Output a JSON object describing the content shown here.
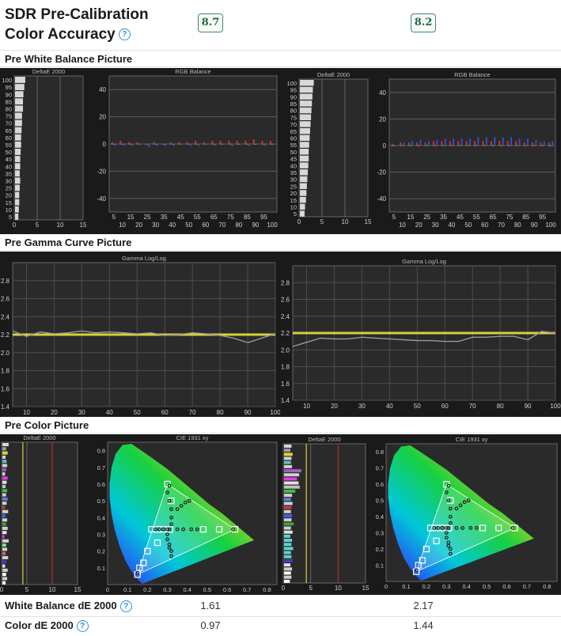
{
  "header": {
    "title_line1": "SDR Pre-Calibration",
    "title_line2": "Color Accuracy",
    "help_icon": "question-circle-icon",
    "score_left": "8.7",
    "score_right": "8.2"
  },
  "sections": {
    "white_balance": "Pre White Balance Picture",
    "gamma": "Pre Gamma Curve Picture",
    "color": "Pre Color Picture"
  },
  "colors": {
    "panel_bg": "#1a1a1a",
    "plot_bg": "#2a2a2a",
    "grid": "#555555",
    "gamma_target": "#d8d03a",
    "gamma_measured": "#9a9a9a",
    "red_line": "#c03030",
    "score_border": "#3a8f5c"
  },
  "metrics": [
    {
      "label": "White Balance dE 2000",
      "left": "1.61",
      "right": "2.17"
    },
    {
      "label": "Color dE 2000",
      "left": "0.97",
      "right": "1.44"
    }
  ],
  "chart_data": [
    {
      "id": "wb-deltae-left",
      "type": "bar",
      "title": "DeltaE 2000",
      "orientation": "horizontal",
      "categories": [
        5,
        10,
        15,
        20,
        25,
        30,
        35,
        40,
        45,
        50,
        55,
        60,
        65,
        70,
        75,
        80,
        85,
        90,
        95,
        100
      ],
      "values": [
        0.9,
        1.0,
        1.1,
        1.1,
        1.2,
        1.3,
        1.2,
        1.3,
        1.3,
        1.4,
        1.5,
        1.5,
        1.6,
        1.7,
        1.7,
        1.9,
        1.9,
        2.0,
        2.2,
        2.4
      ],
      "xlim": [
        0,
        15
      ],
      "xticks": [
        0,
        5,
        10,
        15
      ],
      "yticks": [
        5,
        10,
        15,
        20,
        25,
        30,
        35,
        40,
        45,
        50,
        55,
        60,
        65,
        70,
        75,
        80,
        85,
        90,
        95,
        100
      ]
    },
    {
      "id": "wb-rgb-left",
      "type": "scatter",
      "title": "RGB Balance",
      "x": [
        5,
        10,
        15,
        20,
        25,
        30,
        35,
        40,
        45,
        50,
        55,
        60,
        65,
        70,
        75,
        80,
        85,
        90,
        95,
        100
      ],
      "series": [
        {
          "color": "#e03030",
          "values": [
            1,
            2,
            1,
            1,
            0,
            1,
            0,
            1,
            1,
            1,
            2,
            1,
            2,
            2,
            2,
            2,
            2,
            3,
            2,
            2
          ]
        },
        {
          "color": "#30b030",
          "values": [
            0,
            0,
            0,
            0,
            0,
            0,
            0,
            0,
            0,
            0,
            0,
            0,
            0,
            0,
            0,
            0,
            0,
            0,
            0,
            0
          ]
        },
        {
          "color": "#3050e0",
          "values": [
            -1,
            -1,
            -1,
            0,
            -2,
            -1,
            -1,
            -1,
            0,
            -1,
            -1,
            0,
            -1,
            0,
            -1,
            0,
            -1,
            0,
            -1,
            0
          ]
        }
      ],
      "ylim": [
        -50,
        50
      ],
      "yticks": [
        -40,
        -20,
        0,
        20,
        40
      ],
      "xticks_top": [
        5,
        15,
        25,
        35,
        45,
        55,
        65,
        75,
        85,
        95
      ],
      "xticks_bottom": [
        10,
        20,
        30,
        40,
        50,
        60,
        70,
        80,
        90,
        100
      ]
    },
    {
      "id": "wb-deltae-right",
      "type": "bar",
      "title": "DeltaE 2000",
      "orientation": "horizontal",
      "categories": [
        5,
        10,
        15,
        20,
        25,
        30,
        35,
        40,
        45,
        50,
        55,
        60,
        65,
        70,
        75,
        80,
        85,
        90,
        95,
        100
      ],
      "values": [
        1.2,
        1.3,
        1.5,
        1.6,
        1.7,
        1.8,
        1.9,
        2.0,
        2.1,
        2.1,
        2.2,
        2.3,
        2.4,
        2.5,
        2.6,
        2.7,
        2.8,
        2.9,
        3.0,
        3.2
      ],
      "xlim": [
        0,
        15
      ],
      "xticks": [
        0,
        5,
        10,
        15
      ],
      "yticks": [
        5,
        10,
        15,
        20,
        25,
        30,
        35,
        40,
        45,
        50,
        55,
        60,
        65,
        70,
        75,
        80,
        85,
        90,
        95,
        100
      ]
    },
    {
      "id": "wb-rgb-right",
      "type": "scatter",
      "title": "RGB Balance",
      "x": [
        5,
        10,
        15,
        20,
        25,
        30,
        35,
        40,
        45,
        50,
        55,
        60,
        65,
        70,
        75,
        80,
        85,
        90,
        95,
        100
      ],
      "series": [
        {
          "color": "#e03030",
          "values": [
            1,
            2,
            2,
            2,
            2,
            3,
            3,
            3,
            3,
            3,
            3,
            3,
            3,
            3,
            3,
            3,
            2,
            2,
            2,
            2
          ]
        },
        {
          "color": "#30b030",
          "values": [
            0,
            0,
            0,
            0,
            0,
            0,
            0,
            0,
            0,
            0,
            0,
            0,
            0,
            0,
            0,
            0,
            0,
            0,
            0,
            0
          ]
        },
        {
          "color": "#3050e0",
          "values": [
            0,
            2,
            3,
            4,
            3,
            4,
            5,
            5,
            5,
            5,
            6,
            6,
            6,
            6,
            6,
            5,
            5,
            4,
            3,
            3
          ]
        }
      ],
      "ylim": [
        -50,
        50
      ],
      "yticks": [
        -40,
        -20,
        0,
        20,
        40
      ],
      "xticks_top": [
        5,
        15,
        25,
        35,
        45,
        55,
        65,
        75,
        85,
        95
      ],
      "xticks_bottom": [
        10,
        20,
        30,
        40,
        50,
        60,
        70,
        80,
        90,
        100
      ]
    },
    {
      "id": "gamma-left",
      "type": "line",
      "title": "Gamma Log/Log",
      "x": [
        5,
        10,
        15,
        20,
        25,
        30,
        35,
        40,
        45,
        50,
        55,
        60,
        65,
        70,
        75,
        80,
        85,
        90,
        95,
        100
      ],
      "series": [
        {
          "color": "#d8d03a",
          "values": [
            2.2,
            2.2,
            2.2,
            2.2,
            2.2,
            2.2,
            2.2,
            2.2,
            2.2,
            2.2,
            2.2,
            2.2,
            2.2,
            2.2,
            2.2,
            2.2,
            2.2,
            2.2,
            2.2,
            2.2
          ]
        },
        {
          "color": "#9a9a9a",
          "values": [
            2.24,
            2.18,
            2.23,
            2.21,
            2.22,
            2.24,
            2.22,
            2.23,
            2.22,
            2.21,
            2.22,
            2.19,
            2.2,
            2.22,
            2.21,
            2.19,
            2.16,
            2.11,
            2.16,
            2.21
          ]
        }
      ],
      "ylim": [
        1.4,
        3.0
      ],
      "yticks": [
        1.4,
        1.6,
        1.8,
        2.0,
        2.2,
        2.4,
        2.6,
        2.8
      ],
      "xticks": [
        10,
        20,
        30,
        40,
        50,
        60,
        70,
        80,
        90,
        100
      ]
    },
    {
      "id": "gamma-right",
      "type": "line",
      "title": "Gamma Log/Log",
      "x": [
        5,
        10,
        15,
        20,
        25,
        30,
        35,
        40,
        45,
        50,
        55,
        60,
        65,
        70,
        75,
        80,
        85,
        90,
        95,
        100
      ],
      "series": [
        {
          "color": "#d8d03a",
          "values": [
            2.2,
            2.2,
            2.2,
            2.2,
            2.2,
            2.2,
            2.2,
            2.2,
            2.2,
            2.2,
            2.2,
            2.2,
            2.2,
            2.2,
            2.2,
            2.2,
            2.2,
            2.2,
            2.2,
            2.2
          ]
        },
        {
          "color": "#9a9a9a",
          "values": [
            2.04,
            2.09,
            2.14,
            2.13,
            2.13,
            2.15,
            2.14,
            2.13,
            2.12,
            2.11,
            2.11,
            2.1,
            2.1,
            2.15,
            2.15,
            2.16,
            2.16,
            2.12,
            2.22,
            2.2
          ]
        }
      ],
      "ylim": [
        1.4,
        3.0
      ],
      "yticks": [
        1.4,
        1.6,
        1.8,
        2.0,
        2.2,
        2.4,
        2.6,
        2.8
      ],
      "xticks": [
        10,
        20,
        30,
        40,
        50,
        60,
        70,
        80,
        90,
        100
      ]
    },
    {
      "id": "color-deltae-left",
      "type": "bar",
      "title": "DeltaE 2000",
      "orientation": "horizontal",
      "values": [
        0.8,
        1.1,
        0.9,
        1.2,
        0.7,
        1.0,
        1.3,
        0.8,
        1.1,
        0.9,
        1.4,
        0.6,
        1.0,
        1.2,
        0.9,
        1.1,
        0.8,
        1.3,
        0.7,
        1.0,
        1.2,
        0.9,
        1.1,
        0.8,
        1.0,
        1.2,
        0.7,
        0.9,
        1.1,
        1.0,
        0.8,
        1.2,
        0.9,
        1.4
      ],
      "colors": [
        "#d8d8d8",
        "#a0a0a0",
        "#e0d040",
        "#d0d0d0",
        "#60c0c0",
        "#d0d0d0",
        "#a060c0",
        "#d0d0d0",
        "#e040e0",
        "#e0e0e0",
        "#c0c0c0",
        "#40c040",
        "#d0d0d0",
        "#6080e0",
        "#d0d0d0",
        "#c04040",
        "#d0d0d0",
        "#4060e0",
        "#d0d0d0",
        "#40a040",
        "#d0d0d0",
        "#e0e0e0",
        "#c040c0",
        "#d0d0d0",
        "#80e080",
        "#d0d0d0",
        "#e06060",
        "#d0d0d0",
        "#4040c0",
        "#e0e0e0",
        "#d0d0d0",
        "#ffffff",
        "#d0d0d0",
        "#ffffff"
      ],
      "xlim": [
        0,
        15
      ],
      "xticks": [
        0,
        5,
        10,
        15
      ]
    },
    {
      "id": "cie-left",
      "type": "scatter",
      "title": "CIE 1931 xy",
      "targets": [
        [
          0.64,
          0.33
        ],
        [
          0.3,
          0.6
        ],
        [
          0.15,
          0.06
        ],
        [
          0.3127,
          0.329
        ],
        [
          0.2,
          0.2
        ],
        [
          0.25,
          0.25
        ],
        [
          0.32,
          0.5
        ],
        [
          0.48,
          0.33
        ],
        [
          0.56,
          0.33
        ],
        [
          0.25,
          0.33
        ],
        [
          0.28,
          0.33
        ],
        [
          0.22,
          0.33
        ],
        [
          0.16,
          0.1
        ],
        [
          0.18,
          0.13
        ]
      ],
      "measured": [
        [
          0.63,
          0.33
        ],
        [
          0.31,
          0.59
        ],
        [
          0.15,
          0.07
        ],
        [
          0.31,
          0.33
        ],
        [
          0.35,
          0.45
        ],
        [
          0.37,
          0.47
        ],
        [
          0.39,
          0.49
        ],
        [
          0.41,
          0.5
        ],
        [
          0.3,
          0.55
        ],
        [
          0.31,
          0.5
        ],
        [
          0.32,
          0.45
        ],
        [
          0.32,
          0.4
        ],
        [
          0.32,
          0.36
        ],
        [
          0.3,
          0.33
        ],
        [
          0.28,
          0.33
        ],
        [
          0.26,
          0.33
        ],
        [
          0.24,
          0.33
        ],
        [
          0.35,
          0.33
        ],
        [
          0.38,
          0.33
        ],
        [
          0.42,
          0.33
        ],
        [
          0.45,
          0.33
        ],
        [
          0.3,
          0.3
        ],
        [
          0.3,
          0.27
        ],
        [
          0.31,
          0.24
        ],
        [
          0.31,
          0.22
        ],
        [
          0.32,
          0.2
        ],
        [
          0.32,
          0.17
        ]
      ],
      "xlim": [
        0,
        0.85
      ],
      "ylim": [
        0,
        0.85
      ],
      "xticks": [
        0,
        0.1,
        0.2,
        0.3,
        0.4,
        0.5,
        0.6,
        0.7,
        0.8
      ],
      "yticks": [
        0.1,
        0.2,
        0.3,
        0.4,
        0.5,
        0.6,
        0.7,
        0.8
      ]
    },
    {
      "id": "color-deltae-right",
      "type": "bar",
      "title": "DeltaE 2000",
      "orientation": "horizontal",
      "values": [
        1.2,
        1.5,
        1.4,
        1.6,
        1.3,
        1.7,
        1.5,
        1.4,
        1.8,
        1.5,
        1.6,
        1.3,
        1.7,
        1.4,
        1.9,
        1.5,
        1.6,
        1.4,
        1.5,
        1.7,
        1.4,
        1.6,
        2.2,
        3.0,
        2.8,
        2.5,
        2.9,
        3.3,
        1.6,
        1.4,
        1.5,
        1.7,
        1.3,
        1.5
      ],
      "colors": [
        "#d8d8d8",
        "#a0a0a0",
        "#e0d040",
        "#d0d0d0",
        "#60c0c0",
        "#d0d0d0",
        "#a060c0",
        "#d0d0d0",
        "#e040e0",
        "#e0e0e0",
        "#c0c0c0",
        "#40c040",
        "#d0d0d0",
        "#6080e0",
        "#d0d0d0",
        "#c04040",
        "#d0d0d0",
        "#4060e0",
        "#d0d0d0",
        "#40a040",
        "#d0d0d0",
        "#e0e0e0",
        "#60d0d0",
        "#60d0d0",
        "#60d0d0",
        "#60d0d0",
        "#60d0d0",
        "#60d0d0",
        "#4040c0",
        "#e0e0e0",
        "#d0d0d0",
        "#ffffff",
        "#d0d0d0",
        "#ffffff"
      ],
      "xlim": [
        0,
        15
      ],
      "xticks": [
        0,
        5,
        10,
        15
      ]
    },
    {
      "id": "cie-right",
      "type": "scatter",
      "title": "CIE 1931 xy",
      "targets": [
        [
          0.64,
          0.33
        ],
        [
          0.3,
          0.6
        ],
        [
          0.15,
          0.06
        ],
        [
          0.3127,
          0.329
        ],
        [
          0.2,
          0.2
        ],
        [
          0.25,
          0.25
        ],
        [
          0.32,
          0.5
        ],
        [
          0.48,
          0.33
        ],
        [
          0.56,
          0.33
        ],
        [
          0.25,
          0.33
        ],
        [
          0.28,
          0.33
        ],
        [
          0.22,
          0.33
        ],
        [
          0.16,
          0.1
        ],
        [
          0.18,
          0.13
        ]
      ],
      "measured": [
        [
          0.63,
          0.33
        ],
        [
          0.31,
          0.59
        ],
        [
          0.15,
          0.07
        ],
        [
          0.31,
          0.33
        ],
        [
          0.35,
          0.45
        ],
        [
          0.37,
          0.47
        ],
        [
          0.39,
          0.49
        ],
        [
          0.41,
          0.5
        ],
        [
          0.3,
          0.55
        ],
        [
          0.31,
          0.5
        ],
        [
          0.32,
          0.45
        ],
        [
          0.32,
          0.4
        ],
        [
          0.32,
          0.36
        ],
        [
          0.3,
          0.33
        ],
        [
          0.28,
          0.33
        ],
        [
          0.26,
          0.33
        ],
        [
          0.24,
          0.33
        ],
        [
          0.35,
          0.33
        ],
        [
          0.38,
          0.33
        ],
        [
          0.42,
          0.33
        ],
        [
          0.45,
          0.33
        ],
        [
          0.3,
          0.3
        ],
        [
          0.3,
          0.27
        ],
        [
          0.31,
          0.24
        ],
        [
          0.31,
          0.22
        ],
        [
          0.32,
          0.2
        ],
        [
          0.32,
          0.17
        ]
      ],
      "xlim": [
        0,
        0.85
      ],
      "ylim": [
        0,
        0.85
      ],
      "xticks": [
        0,
        0.1,
        0.2,
        0.3,
        0.4,
        0.5,
        0.6,
        0.7,
        0.8
      ],
      "yticks": [
        0.1,
        0.2,
        0.3,
        0.4,
        0.5,
        0.6,
        0.7,
        0.8
      ]
    }
  ]
}
